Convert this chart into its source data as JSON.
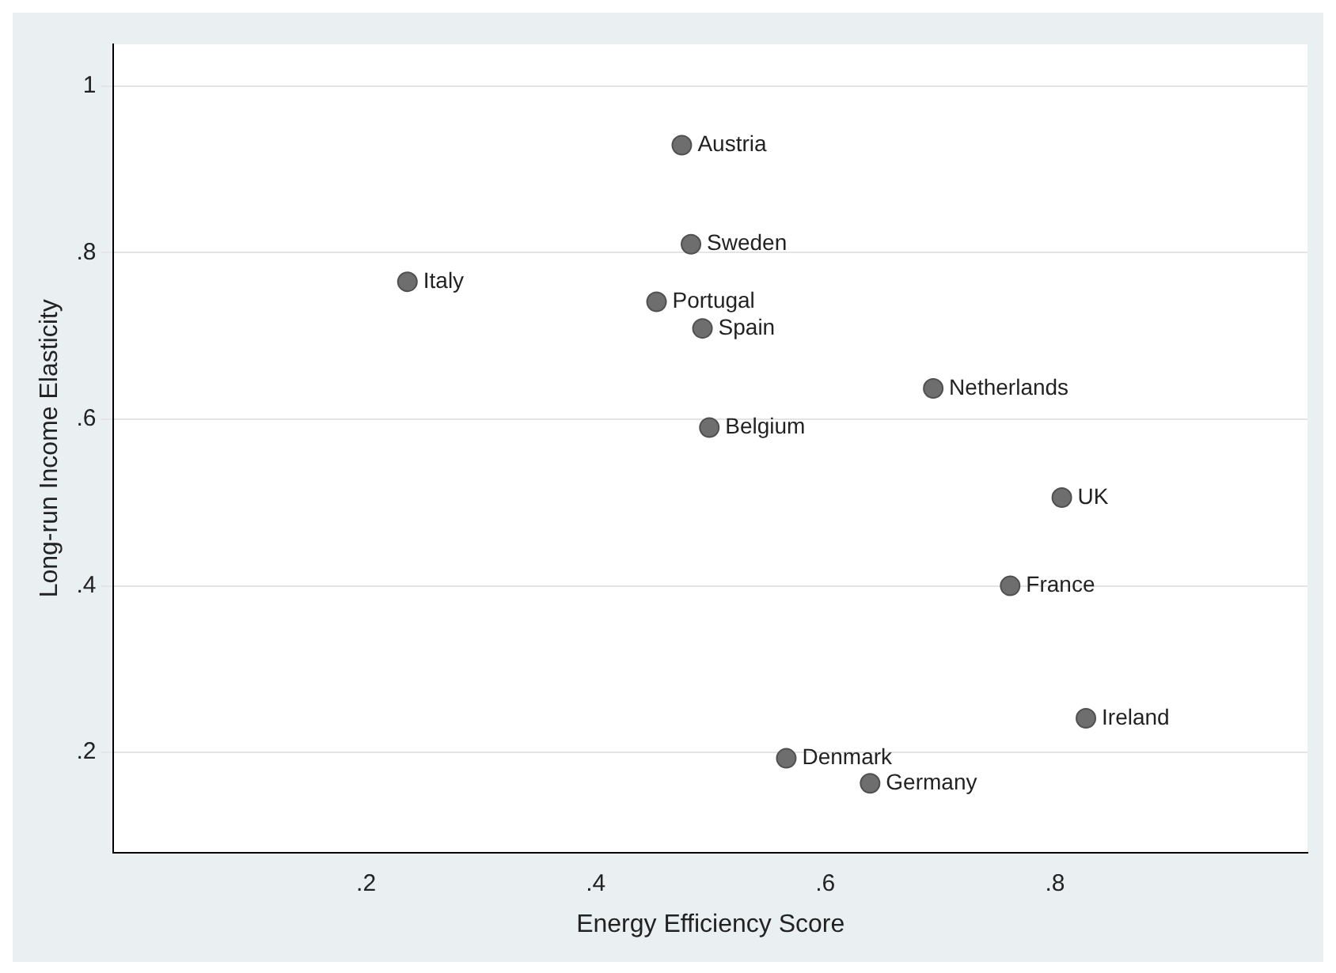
{
  "chart_data": {
    "type": "scatter",
    "xlabel": "Energy Efficiency Score",
    "ylabel": "Long-run Income Elasticity",
    "x": [
      0.475,
      0.483,
      0.236,
      0.453,
      0.493,
      0.694,
      0.499,
      0.806,
      0.761,
      0.827,
      0.566,
      0.639
    ],
    "series": [
      {
        "color": "#6e6e6e",
        "values": [
          0.929,
          0.81,
          0.765,
          0.741,
          0.709,
          0.637,
          0.59,
          0.506,
          0.4,
          0.241,
          0.193,
          0.163
        ]
      }
    ],
    "annotations": [
      {
        "text": "Austria",
        "x": 0.475,
        "y": 0.929
      },
      {
        "text": "Sweden",
        "x": 0.483,
        "y": 0.81
      },
      {
        "text": "Italy",
        "x": 0.236,
        "y": 0.765
      },
      {
        "text": "Portugal",
        "x": 0.453,
        "y": 0.741
      },
      {
        "text": "Spain",
        "x": 0.493,
        "y": 0.709
      },
      {
        "text": "Netherlands",
        "x": 0.694,
        "y": 0.637
      },
      {
        "text": "Belgium",
        "x": 0.499,
        "y": 0.59
      },
      {
        "text": "UK",
        "x": 0.806,
        "y": 0.506
      },
      {
        "text": "France",
        "x": 0.761,
        "y": 0.4
      },
      {
        "text": "Ireland",
        "x": 0.827,
        "y": 0.241
      },
      {
        "text": "Denmark",
        "x": 0.566,
        "y": 0.193
      },
      {
        "text": "Germany",
        "x": 0.639,
        "y": 0.163
      }
    ],
    "xlim": [
      -0.02,
      1.02
    ],
    "ylim": [
      0.08,
      1.05
    ],
    "xticks": [
      {
        "value": 0.2,
        "label": ".2"
      },
      {
        "value": 0.4,
        "label": ".4"
      },
      {
        "value": 0.6,
        "label": ".6"
      },
      {
        "value": 0.8,
        "label": ".8"
      }
    ],
    "yticks": [
      {
        "value": 0.2,
        "label": ".2"
      },
      {
        "value": 0.4,
        "label": ".4"
      },
      {
        "value": 0.6,
        "label": ".6"
      },
      {
        "value": 0.8,
        "label": ".8"
      },
      {
        "value": 1,
        "label": "1"
      }
    ],
    "grid": "y",
    "marker": "circle",
    "legend": false
  }
}
